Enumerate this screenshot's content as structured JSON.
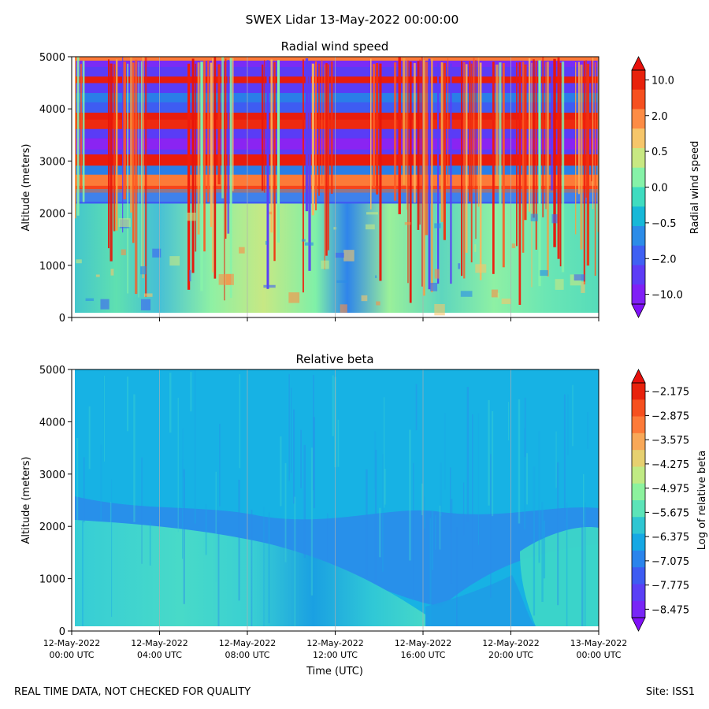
{
  "figure": {
    "suptitle": "SWEX Lidar 13-May-2022 00:00:00",
    "footer_left": "REAL TIME DATA, NOT CHECKED FOR QUALITY",
    "footer_right": "Site: ISS1"
  },
  "chart_data": [
    {
      "type": "heatmap",
      "title": "Radial wind speed",
      "ylabel": "Altitude (meters)",
      "xlabel": "",
      "ylim": [
        0,
        5000
      ],
      "yticks": [
        0,
        1000,
        2000,
        3000,
        4000,
        5000
      ],
      "x_hours": [
        0,
        4,
        8,
        12,
        16,
        20,
        24
      ],
      "grid": "vertical",
      "colorbar": {
        "label": "Radial wind speed",
        "tick_labels": [
          "10.0",
          "2.0",
          "0.5",
          "0.0",
          "−0.5",
          "−2.0",
          "−10.0"
        ],
        "colors": [
          "#e8220c",
          "#f6501f",
          "#fd8c45",
          "#f6c66a",
          "#c8e882",
          "#86f2a8",
          "#3fdcc0",
          "#17b8d8",
          "#2c8ce8",
          "#3f60f3",
          "#5d3cf6",
          "#8020f6"
        ],
        "extend_top": "#e8100c",
        "extend_bottom": "#8010f8"
      },
      "description": "Below about 2000 m: mostly teal/green with scattered orange and blue patches; above about 2000 m: alternating bands of red and purple-blue with dense red vertical streaks."
    },
    {
      "type": "heatmap",
      "title": "Relative beta",
      "ylabel": "Altitude (meters)",
      "xlabel": "Time (UTC)",
      "ylim": [
        0,
        5000
      ],
      "yticks": [
        0,
        1000,
        2000,
        3000,
        4000,
        5000
      ],
      "x_hours": [
        0,
        4,
        8,
        12,
        16,
        20,
        24
      ],
      "x_tick_labels": [
        [
          "12-May-2022",
          "00:00 UTC"
        ],
        [
          "12-May-2022",
          "04:00 UTC"
        ],
        [
          "12-May-2022",
          "08:00 UTC"
        ],
        [
          "12-May-2022",
          "12:00 UTC"
        ],
        [
          "12-May-2022",
          "16:00 UTC"
        ],
        [
          "12-May-2022",
          "20:00 UTC"
        ],
        [
          "13-May-2022",
          "00:00 UTC"
        ]
      ],
      "grid": "vertical",
      "colorbar": {
        "label": "Log of relative beta",
        "tick_labels": [
          "−2.175",
          "−2.875",
          "−3.575",
          "−4.275",
          "−4.975",
          "−5.675",
          "−6.375",
          "−7.075",
          "−7.775",
          "−8.475"
        ],
        "colors": [
          "#e8220c",
          "#f6501f",
          "#fd7a38",
          "#f8a858",
          "#e6d070",
          "#c0ea84",
          "#8cf29e",
          "#5ce4b8",
          "#2ec6d2",
          "#16a8e4",
          "#2a84ec",
          "#3e5cf2",
          "#5a40f6",
          "#7826f6"
        ],
        "extend_top": "#e8100c",
        "extend_bottom": "#8010f8"
      },
      "description": "Mostly sky-blue field; darker blue band between roughly 2000 and 3000 m; lighter teal region below about 2000 m."
    }
  ]
}
